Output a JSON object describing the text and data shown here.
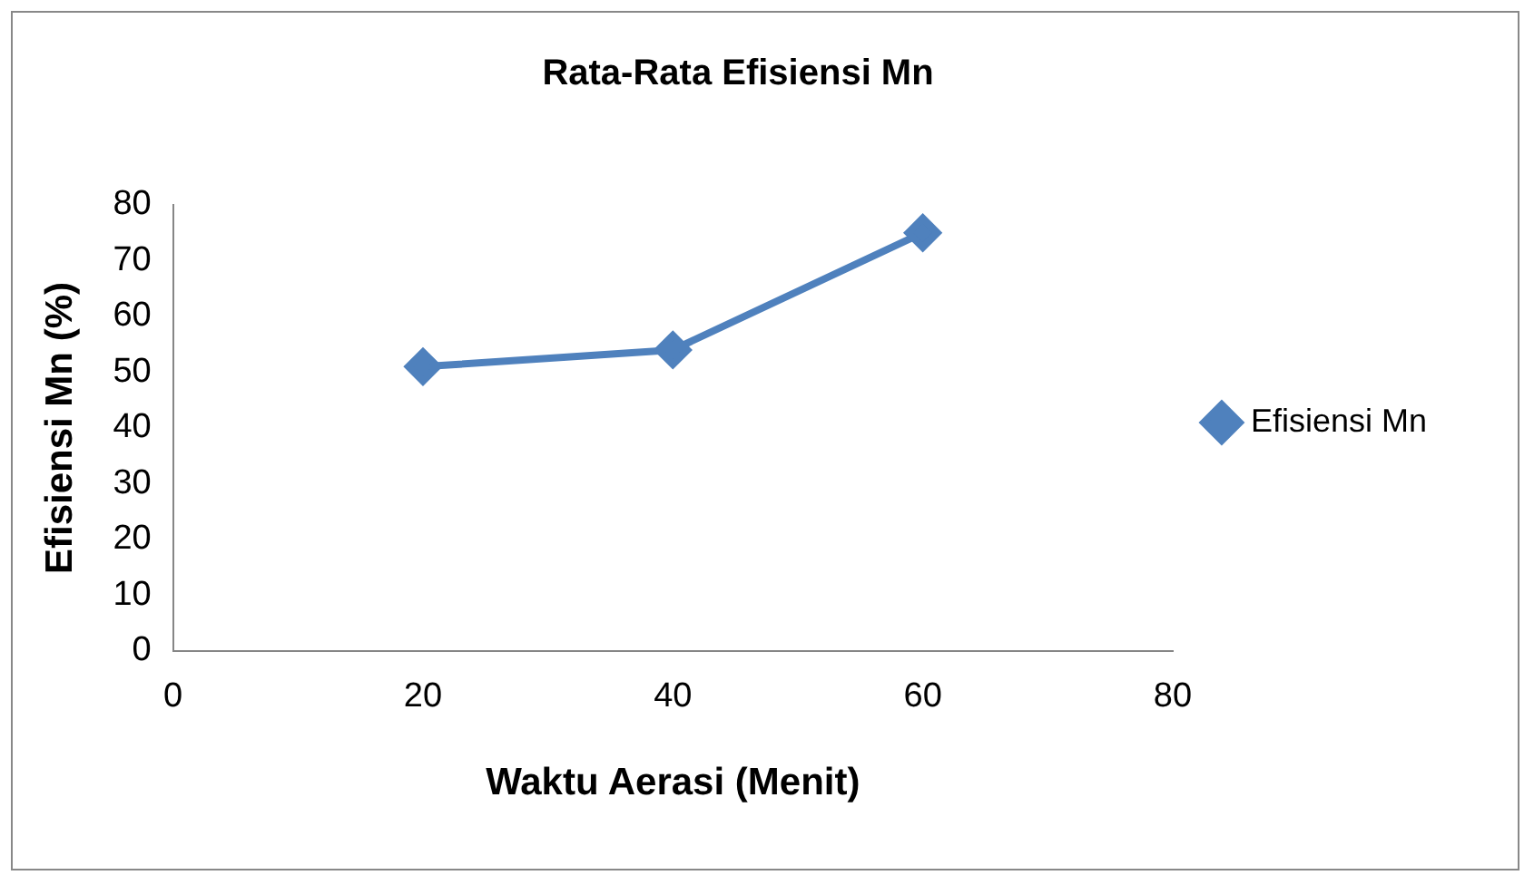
{
  "chart_data": {
    "type": "line",
    "title": "Rata-Rata Efisiensi Mn",
    "xlabel": "Waktu Aerasi (Menit)",
    "ylabel": "Efisiensi Mn (%)",
    "x": [
      20,
      40,
      60
    ],
    "series": [
      {
        "name": "Efisiensi Mn",
        "color": "#4f81bd",
        "values": [
          51,
          54,
          75
        ]
      }
    ],
    "xlim": [
      0,
      80
    ],
    "xticks": [
      0,
      20,
      40,
      60,
      80
    ],
    "ylim": [
      0,
      80
    ],
    "yticks": [
      0,
      10,
      20,
      30,
      40,
      50,
      60,
      70,
      80
    ],
    "grid": false,
    "legend": "right",
    "marker": "diamond",
    "line_style": "solid"
  }
}
